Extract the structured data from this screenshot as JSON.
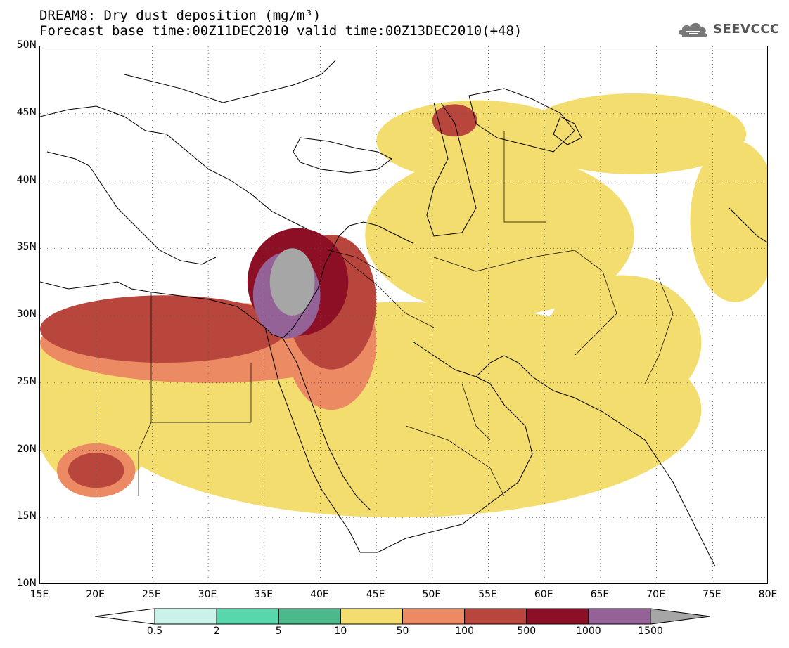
{
  "title": {
    "line1": "DREAM8: Dry dust deposition (mg/m³)",
    "line2": "Forecast base time:00Z11DEC2010 valid time:00Z13DEC2010(+48)"
  },
  "logo": {
    "text": "SEEVCCC",
    "icon": "cloud-icon"
  },
  "map": {
    "lat_range": [
      10,
      50
    ],
    "lon_range": [
      15,
      80
    ],
    "lat_ticks": [
      "10N",
      "15N",
      "20N",
      "25N",
      "30N",
      "35N",
      "40N",
      "45N",
      "50N"
    ],
    "lon_ticks": [
      "15E",
      "20E",
      "25E",
      "30E",
      "35E",
      "40E",
      "45E",
      "50E",
      "55E",
      "60E",
      "65E",
      "70E",
      "75E",
      "80E"
    ],
    "gridlines": "dotted",
    "dust_areas": [
      {
        "level": 4,
        "lon": 47,
        "lat": 23,
        "rx": 27,
        "ry": 8
      },
      {
        "level": 4,
        "lon": 30,
        "lat": 25,
        "rx": 14,
        "ry": 6
      },
      {
        "level": 4,
        "lon": 20,
        "lat": 24,
        "rx": 6,
        "ry": 7
      },
      {
        "level": 4,
        "lon": 56,
        "lat": 36,
        "rx": 12,
        "ry": 6
      },
      {
        "level": 4,
        "lon": 54,
        "lat": 43,
        "rx": 9,
        "ry": 3
      },
      {
        "level": 4,
        "lon": 68,
        "lat": 43.5,
        "rx": 10,
        "ry": 3
      },
      {
        "level": 4,
        "lon": 67,
        "lat": 28,
        "rx": 7,
        "ry": 5
      },
      {
        "level": 4,
        "lon": 77,
        "lat": 37,
        "rx": 4,
        "ry": 6
      },
      {
        "level": 5,
        "lon": 30,
        "lat": 28,
        "rx": 15,
        "ry": 3
      },
      {
        "level": 5,
        "lon": 20,
        "lat": 18.5,
        "rx": 3.5,
        "ry": 2
      },
      {
        "level": 5,
        "lon": 41,
        "lat": 28,
        "rx": 4,
        "ry": 5
      },
      {
        "level": 6,
        "lon": 26,
        "lat": 29,
        "rx": 11,
        "ry": 2.5
      },
      {
        "level": 6,
        "lon": 41,
        "lat": 31,
        "rx": 4,
        "ry": 5
      },
      {
        "level": 6,
        "lon": 20,
        "lat": 18.5,
        "rx": 2.5,
        "ry": 1.3
      },
      {
        "level": 6,
        "lon": 52,
        "lat": 44.5,
        "rx": 2,
        "ry": 1.2
      },
      {
        "level": 7,
        "lon": 38,
        "lat": 32.5,
        "rx": 4.5,
        "ry": 4
      },
      {
        "level": 8,
        "lon": 37,
        "lat": 31.5,
        "rx": 3,
        "ry": 3.2
      },
      {
        "level": 9,
        "lon": 37.5,
        "lat": 32.5,
        "rx": 2,
        "ry": 2.5
      }
    ]
  },
  "colorbar": {
    "labels": [
      "0.5",
      "2",
      "5",
      "10",
      "50",
      "100",
      "500",
      "1000",
      "1500"
    ],
    "colors": [
      "#ffffff",
      "#c9f3ea",
      "#58d7ac",
      "#4bb98c",
      "#f3dd6e",
      "#ec8a64",
      "#b8463d",
      "#8d0f26",
      "#956298",
      "#a6a6a6"
    ]
  }
}
